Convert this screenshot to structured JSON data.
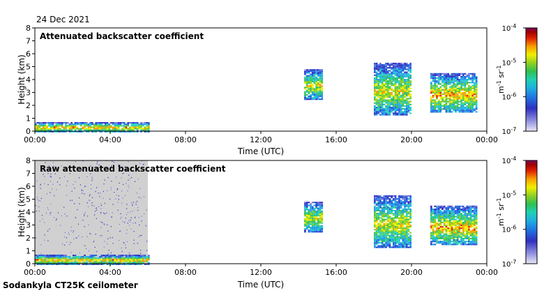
{
  "date_label": "24 Dec 2021",
  "instrument_label": "Sodankyla CT25K ceilometer",
  "colors": {
    "scale": [
      "#e8e8f8",
      "#b8b8ec",
      "#7070d8",
      "#3030c0",
      "#2060e0",
      "#20a0e8",
      "#20d0c0",
      "#30c060",
      "#80d020",
      "#f0f000",
      "#f8a000",
      "#e02000",
      "#a00000",
      "#800060"
    ],
    "background_noise": "#d0d0d0",
    "frame": "#000000"
  },
  "chart_data": [
    {
      "type": "heatmap",
      "title": "Attenuated backscatter coefficient",
      "xlabel": "Time (UTC)",
      "ylabel": "Height (km)",
      "x_ticks": [
        "00:00",
        "04:00",
        "08:00",
        "12:00",
        "16:00",
        "20:00",
        "00:00"
      ],
      "x_range_hours": [
        0,
        24
      ],
      "y_ticks": [
        "0",
        "1",
        "2",
        "3",
        "4",
        "5",
        "6",
        "7",
        "8"
      ],
      "ylim": [
        0,
        8
      ],
      "colorbar": {
        "label": "m-1 sr-1",
        "label_main": "m",
        "label_exp1": "-1",
        "label_mid": " sr",
        "label_exp2": "-1",
        "scale": "log",
        "range": [
          1e-07,
          0.0001
        ],
        "ticks": [
          {
            "base": "10",
            "exp": "-4",
            "value": 0.0001
          },
          {
            "base": "10",
            "exp": "-5",
            "value": 1e-05
          },
          {
            "base": "10",
            "exp": "-6",
            "value": 1e-06
          },
          {
            "base": "10",
            "exp": "-7",
            "value": 1e-07
          }
        ]
      },
      "features": [
        {
          "name": "boundary layer",
          "t_start": 0.0,
          "t_end": 6.0,
          "h_bottom": 0.0,
          "h_top": 0.7,
          "level": 10
        },
        {
          "name": "cloud",
          "t_start": 14.3,
          "t_end": 15.2,
          "h_bottom": 2.5,
          "h_top": 4.8,
          "level": 9
        },
        {
          "name": "cloud",
          "t_start": 18.0,
          "t_end": 20.0,
          "h_bottom": 1.3,
          "h_top": 5.3,
          "level": 9
        },
        {
          "name": "cloud",
          "t_start": 21.0,
          "t_end": 23.5,
          "h_bottom": 1.5,
          "h_top": 4.5,
          "level": 10
        }
      ]
    },
    {
      "type": "heatmap",
      "title": "Raw attenuated backscatter coefficient",
      "xlabel": "Time (UTC)",
      "ylabel": "Height (km)",
      "x_ticks": [
        "00:00",
        "04:00",
        "08:00",
        "12:00",
        "16:00",
        "20:00",
        "00:00"
      ],
      "x_range_hours": [
        0,
        24
      ],
      "y_ticks": [
        "0",
        "1",
        "2",
        "3",
        "4",
        "5",
        "6",
        "7",
        "8"
      ],
      "ylim": [
        0,
        8
      ],
      "colorbar": {
        "label": "m-1 sr-1",
        "label_main": "m",
        "label_exp1": "-1",
        "label_mid": " sr",
        "label_exp2": "-1",
        "scale": "log",
        "range": [
          1e-07,
          0.0001
        ],
        "ticks": [
          {
            "base": "10",
            "exp": "-4",
            "value": 0.0001
          },
          {
            "base": "10",
            "exp": "-5",
            "value": 1e-05
          },
          {
            "base": "10",
            "exp": "-6",
            "value": 1e-06
          },
          {
            "base": "10",
            "exp": "-7",
            "value": 1e-07
          }
        ]
      },
      "features": [
        {
          "name": "noise background",
          "t_start": 0.0,
          "t_end": 6.0,
          "h_bottom": 0.0,
          "h_top": 8.0,
          "level": 0
        },
        {
          "name": "boundary layer",
          "t_start": 0.0,
          "t_end": 6.0,
          "h_bottom": 0.0,
          "h_top": 0.7,
          "level": 10
        },
        {
          "name": "cloud",
          "t_start": 14.3,
          "t_end": 15.2,
          "h_bottom": 2.5,
          "h_top": 4.8,
          "level": 9
        },
        {
          "name": "cloud",
          "t_start": 18.0,
          "t_end": 20.0,
          "h_bottom": 1.3,
          "h_top": 5.3,
          "level": 9
        },
        {
          "name": "cloud",
          "t_start": 21.0,
          "t_end": 23.5,
          "h_bottom": 1.5,
          "h_top": 4.5,
          "level": 10
        }
      ]
    }
  ]
}
